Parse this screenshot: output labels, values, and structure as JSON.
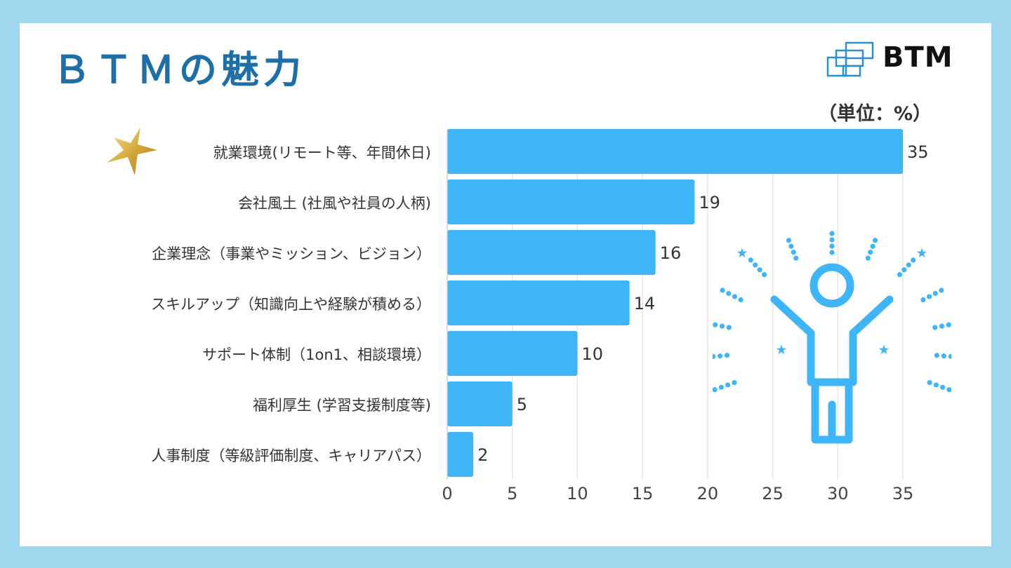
{
  "header": {
    "title": "ＢＴＭの魅力",
    "logo_text": "BTM",
    "unit_label": "（単位：%）"
  },
  "colors": {
    "background": "#9fd8ee",
    "bar": "#3db5f7",
    "title": "#1d6fa5",
    "accent_star": "#d9b84a"
  },
  "icons": [
    "star-icon",
    "cheering-person-icon",
    "btm-logo-icon"
  ],
  "chart_data": {
    "type": "bar",
    "orientation": "horizontal",
    "categories": [
      "就業環境(リモート等、年間休日)",
      "会社風土 (社風や社員の人柄)",
      "企業理念（事業やミッション、ビジョン）",
      "スキルアップ（知識向上や経験が積める）",
      "サポート体制（1on1、相談環境）",
      "福利厚生 (学習支援制度等)",
      "人事制度（等級評価制度、キャリアパス）"
    ],
    "values": [
      35,
      19,
      16,
      14,
      10,
      5,
      2
    ],
    "xticks": [
      "0",
      "5",
      "10",
      "15",
      "20",
      "25",
      "30",
      "35"
    ],
    "xlim": [
      0,
      35
    ],
    "grid": true,
    "highlighted_category": 0
  }
}
